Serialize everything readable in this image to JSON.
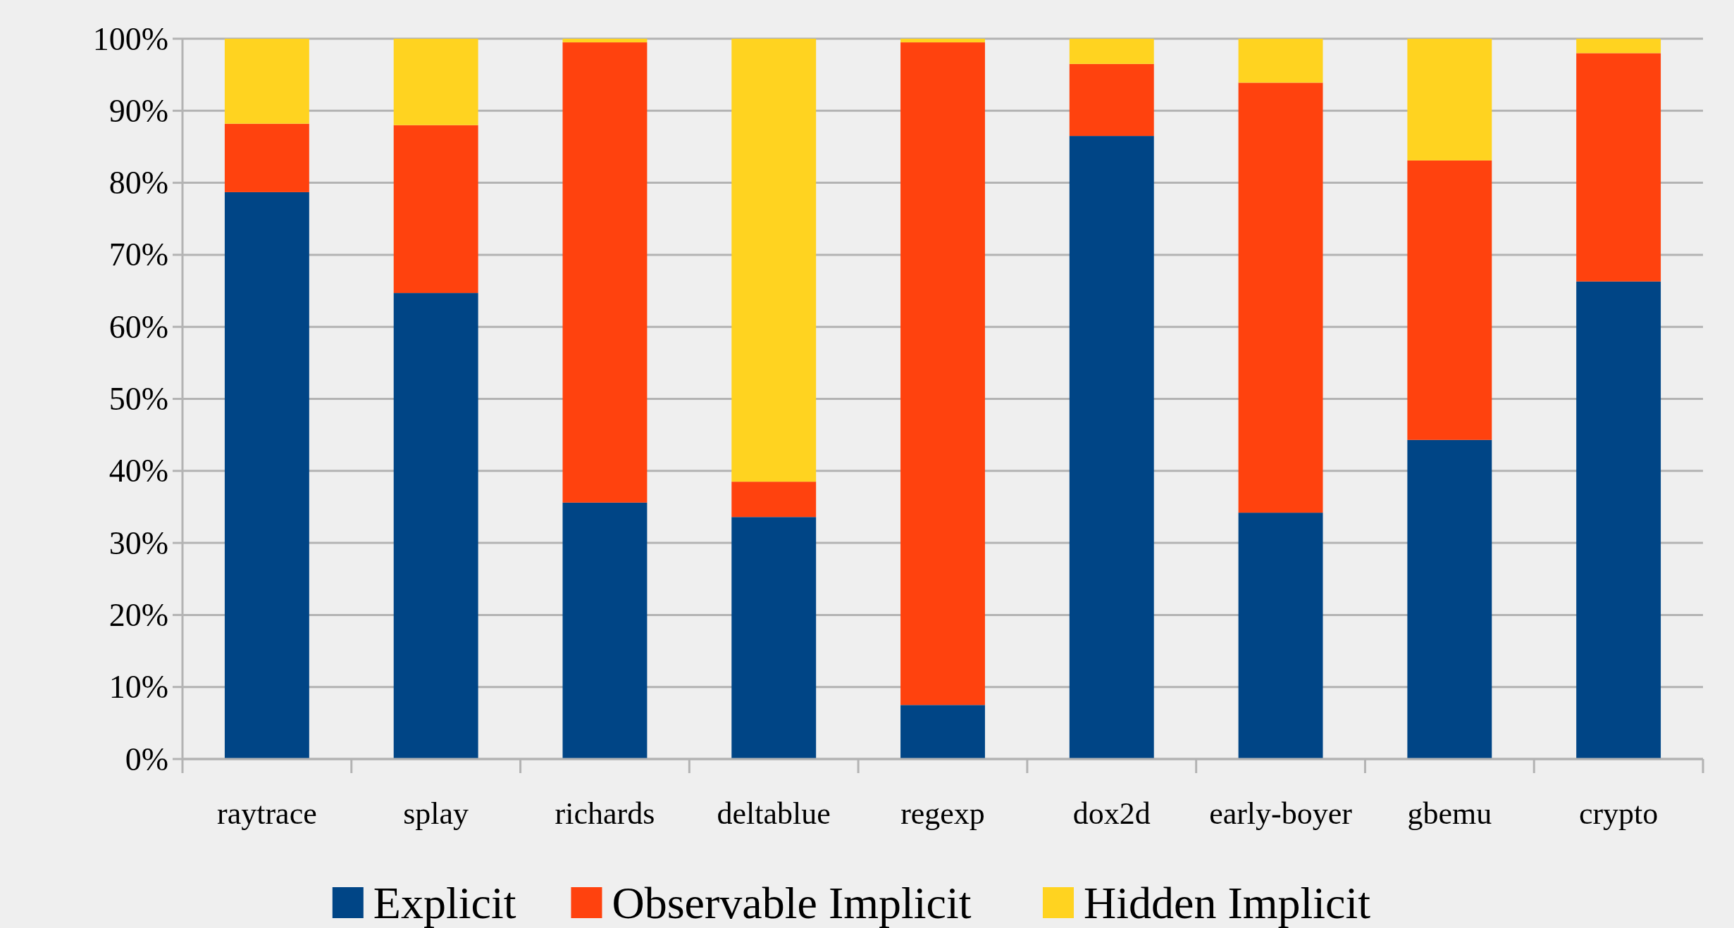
{
  "chart_data": {
    "type": "bar",
    "stacked": true,
    "categories": [
      "raytrace",
      "splay",
      "richards",
      "deltablue",
      "regexp",
      "dox2d",
      "early-boyer",
      "gbemu",
      "crypto"
    ],
    "series": [
      {
        "name": "Explicit",
        "color": "#004586",
        "values": [
          78.7,
          64.7,
          35.6,
          33.6,
          7.5,
          86.5,
          34.2,
          44.3,
          66.3
        ]
      },
      {
        "name": "Observable Implicit",
        "color": "#ff420e",
        "values": [
          9.5,
          23.3,
          63.9,
          4.9,
          92.0,
          10.0,
          59.7,
          38.8,
          31.7
        ]
      },
      {
        "name": "Hidden Implicit",
        "color": "#ffd320",
        "values": [
          11.8,
          12.0,
          0.5,
          61.5,
          0.5,
          3.5,
          6.1,
          16.9,
          2.0
        ]
      }
    ],
    "ylim": [
      0,
      100
    ],
    "yticks": [
      {
        "value": 0,
        "label": "0%"
      },
      {
        "value": 10,
        "label": "10%"
      },
      {
        "value": 20,
        "label": "20%"
      },
      {
        "value": 30,
        "label": "30%"
      },
      {
        "value": 40,
        "label": "40%"
      },
      {
        "value": 50,
        "label": "50%"
      },
      {
        "value": 60,
        "label": "60%"
      },
      {
        "value": 70,
        "label": "70%"
      },
      {
        "value": 80,
        "label": "80%"
      },
      {
        "value": 90,
        "label": "90%"
      },
      {
        "value": 100,
        "label": "100%"
      }
    ],
    "grid": "y",
    "legend": "bottom"
  }
}
